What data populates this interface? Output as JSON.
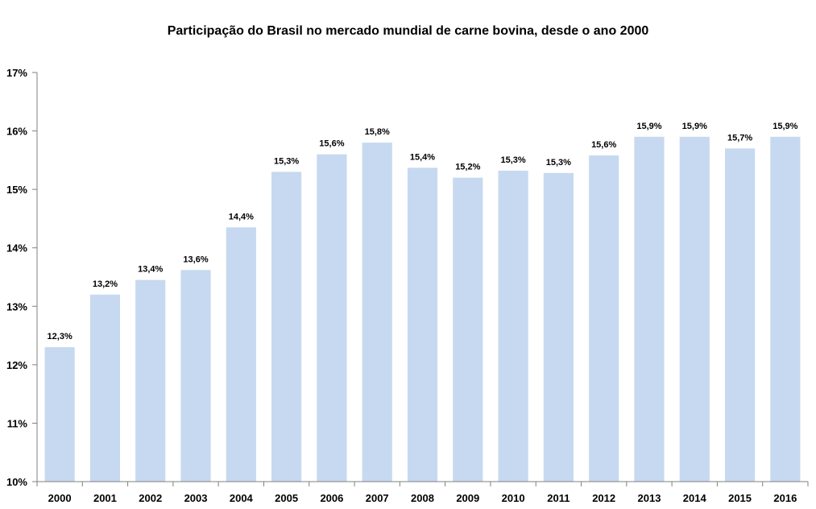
{
  "chart_data": {
    "type": "bar",
    "title": "Participação do Brasil no mercado mundial de carne bovina, desde o ano 2000",
    "xlabel": "",
    "ylabel": "",
    "ylim": [
      10,
      17
    ],
    "yticks": [
      "10%",
      "11%",
      "12%",
      "13%",
      "14%",
      "15%",
      "16%",
      "17%"
    ],
    "categories": [
      "2000",
      "2001",
      "2002",
      "2003",
      "2004",
      "2005",
      "2006",
      "2007",
      "2008",
      "2009",
      "2010",
      "2011",
      "2012",
      "2013",
      "2014",
      "2015",
      "2016"
    ],
    "values": [
      12.3,
      13.2,
      13.45,
      13.62,
      14.35,
      15.3,
      15.6,
      15.8,
      15.37,
      15.2,
      15.32,
      15.28,
      15.58,
      15.9,
      15.9,
      15.7,
      15.9
    ],
    "data_labels": [
      "12,3%",
      "13,2%",
      "13,4%",
      "13,6%",
      "14,4%",
      "15,3%",
      "15,6%",
      "15,8%",
      "15,4%",
      "15,2%",
      "15,3%",
      "15,3%",
      "15,6%",
      "15,9%",
      "15,9%",
      "15,7%",
      "15,9%"
    ],
    "bar_color": "#c6d9f0",
    "axis_color": "#808080",
    "grid": false,
    "legend": "none"
  }
}
